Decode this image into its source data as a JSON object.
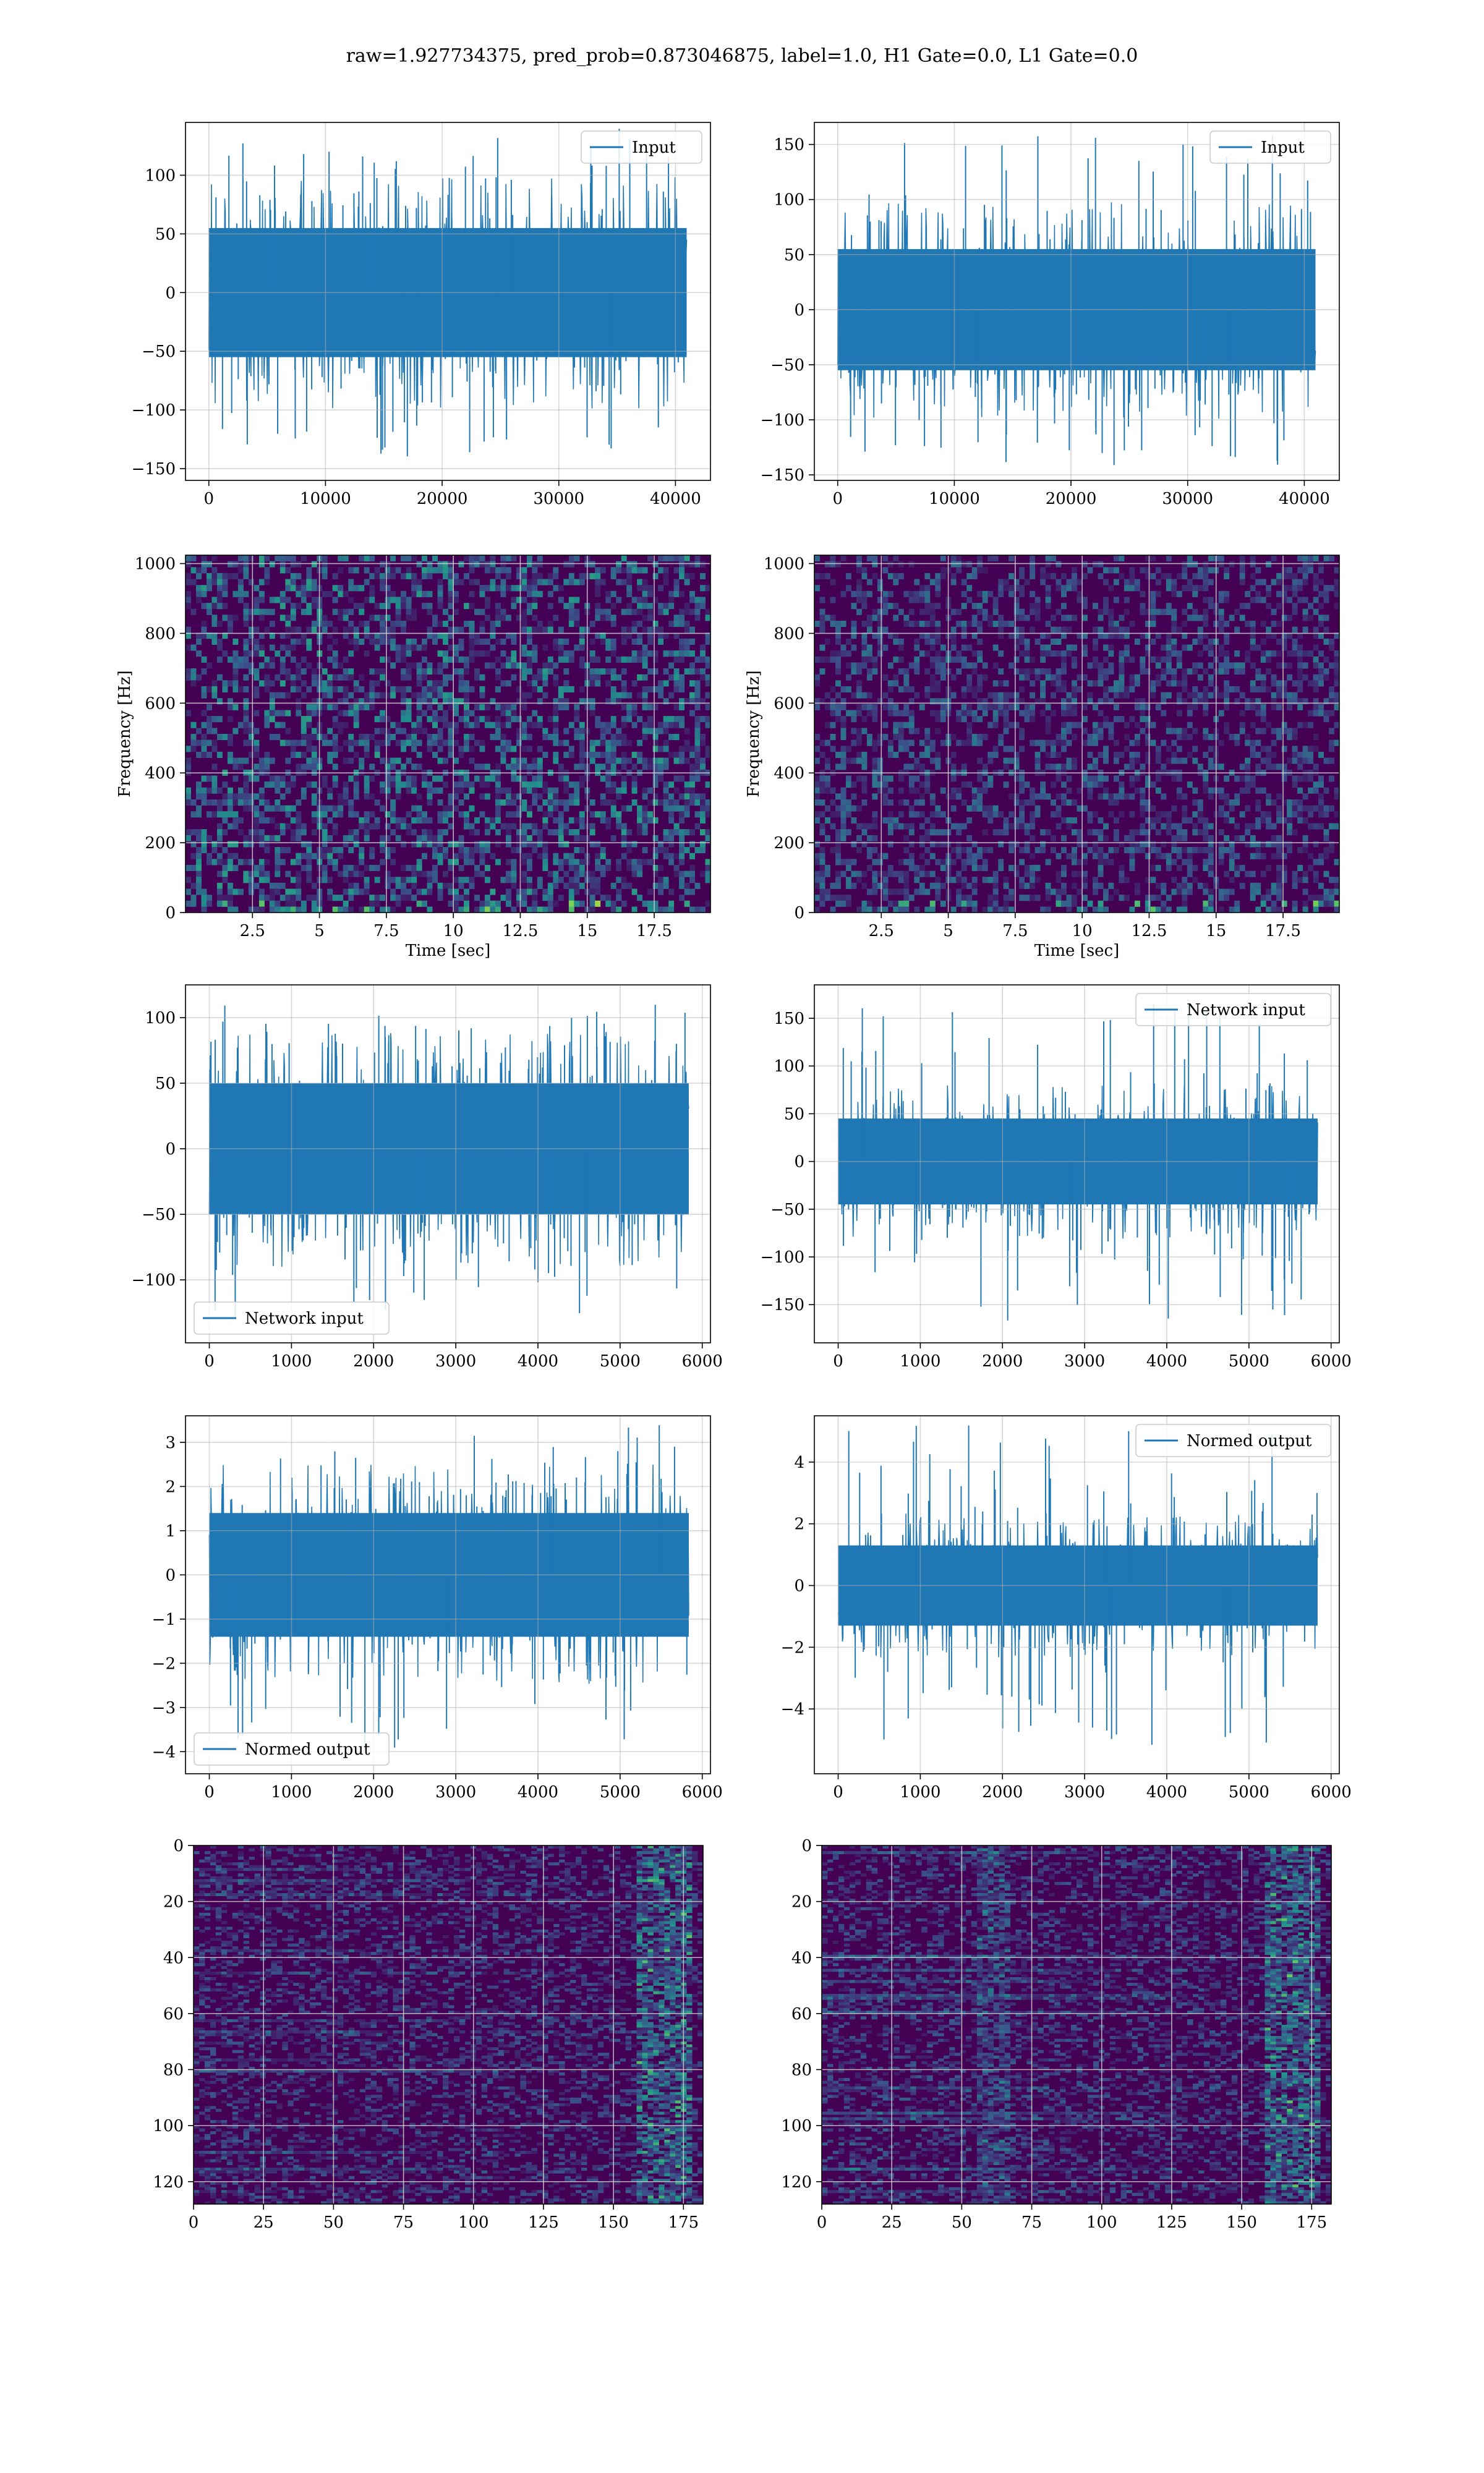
{
  "figure_title": "raw=1.927734375, pred_prob=0.873046875, label=1.0, H1 Gate=0.0, L1 Gate=0.0",
  "colors": {
    "line": "#1f77b4",
    "grid": "#b0b0b0",
    "viridis_dark": "#440154",
    "viridis_mid": "#21918c",
    "viridis_bright": "#fde725"
  },
  "chart_data": [
    {
      "id": "input-h1",
      "type": "line",
      "legend": "Input",
      "legend_loc": "upper right",
      "grid": true,
      "xlim": [
        -2000,
        43000
      ],
      "ylim": [
        -160,
        145
      ],
      "xticks": [
        0,
        10000,
        20000,
        30000,
        40000
      ],
      "yticks": [
        -150,
        -100,
        -50,
        0,
        50,
        100
      ],
      "x_range": [
        0,
        40959
      ],
      "band_y": [
        -55,
        55
      ],
      "spike_y": [
        -145,
        140
      ],
      "xlabel": "",
      "ylabel": ""
    },
    {
      "id": "input-l1",
      "type": "line",
      "legend": "Input",
      "legend_loc": "upper right",
      "grid": true,
      "xlim": [
        -2000,
        43000
      ],
      "ylim": [
        -155,
        170
      ],
      "xticks": [
        0,
        10000,
        20000,
        30000,
        40000
      ],
      "yticks": [
        -150,
        -100,
        -50,
        0,
        50,
        100,
        150
      ],
      "x_range": [
        0,
        40959
      ],
      "band_y": [
        -55,
        55
      ],
      "spike_y": [
        -145,
        160
      ],
      "xlabel": "",
      "ylabel": ""
    },
    {
      "id": "spec-h1",
      "type": "heatmap",
      "grid": true,
      "colormap": "viridis",
      "xlim": [
        0,
        19.6
      ],
      "ylim": [
        0,
        1024
      ],
      "xticks": [
        2.5,
        5.0,
        7.5,
        10.0,
        12.5,
        15.0,
        17.5
      ],
      "yticks": [
        0,
        200,
        400,
        600,
        800,
        1000
      ],
      "xlabel": "Time [sec]",
      "ylabel": "Frequency [Hz]"
    },
    {
      "id": "spec-l1",
      "type": "heatmap",
      "grid": true,
      "colormap": "viridis",
      "xlim": [
        0,
        19.6
      ],
      "ylim": [
        0,
        1024
      ],
      "xticks": [
        2.5,
        5.0,
        7.5,
        10.0,
        12.5,
        15.0,
        17.5
      ],
      "yticks": [
        0,
        200,
        400,
        600,
        800,
        1000
      ],
      "xlabel": "Time [sec]",
      "ylabel": "Frequency [Hz]"
    },
    {
      "id": "net-h1",
      "type": "line",
      "legend": "Network input",
      "legend_loc": "lower left",
      "grid": true,
      "xlim": [
        -290,
        6100
      ],
      "ylim": [
        -148,
        125
      ],
      "xticks": [
        0,
        1000,
        2000,
        3000,
        4000,
        5000,
        6000
      ],
      "yticks": [
        -100,
        -50,
        0,
        50,
        100
      ],
      "x_range": [
        0,
        5836
      ],
      "band_y": [
        -50,
        50
      ],
      "spike_y": [
        -132,
        110
      ],
      "xlabel": "",
      "ylabel": ""
    },
    {
      "id": "net-l1",
      "type": "line",
      "legend": "Network input",
      "legend_loc": "upper right",
      "grid": true,
      "xlim": [
        -290,
        6100
      ],
      "ylim": [
        -190,
        185
      ],
      "xticks": [
        0,
        1000,
        2000,
        3000,
        4000,
        5000,
        6000
      ],
      "yticks": [
        -150,
        -100,
        -50,
        0,
        50,
        100,
        150
      ],
      "x_range": [
        0,
        5836
      ],
      "band_y": [
        -45,
        45
      ],
      "spike_y": [
        -170,
        170
      ],
      "xlabel": "",
      "ylabel": ""
    },
    {
      "id": "norm-h1",
      "type": "line",
      "legend": "Normed output",
      "legend_loc": "lower left",
      "grid": true,
      "xlim": [
        -290,
        6100
      ],
      "ylim": [
        -4.5,
        3.6
      ],
      "xticks": [
        0,
        1000,
        2000,
        3000,
        4000,
        5000,
        6000
      ],
      "yticks": [
        -4,
        -3,
        -2,
        -1,
        0,
        1,
        2,
        3
      ],
      "x_range": [
        0,
        5836
      ],
      "band_y": [
        -1.4,
        1.4
      ],
      "spike_y": [
        -4.0,
        3.4
      ],
      "xlabel": "",
      "ylabel": ""
    },
    {
      "id": "norm-l1",
      "type": "line",
      "legend": "Normed output",
      "legend_loc": "upper right",
      "grid": true,
      "xlim": [
        -290,
        6100
      ],
      "ylim": [
        -6.1,
        5.5
      ],
      "xticks": [
        0,
        1000,
        2000,
        3000,
        4000,
        5000,
        6000
      ],
      "yticks": [
        -4,
        -2,
        0,
        2,
        4
      ],
      "x_range": [
        0,
        5836
      ],
      "band_y": [
        -1.3,
        1.3
      ],
      "spike_y": [
        -5.2,
        5.2
      ],
      "xlabel": "",
      "ylabel": ""
    },
    {
      "id": "feat-h1",
      "type": "heatmap",
      "grid": true,
      "colormap": "viridis",
      "yaxis": "inverted",
      "xlim": [
        0,
        182
      ],
      "ylim": [
        128,
        0
      ],
      "xticks": [
        0,
        25,
        50,
        75,
        100,
        125,
        150,
        175
      ],
      "yticks": [
        0,
        20,
        40,
        60,
        80,
        100,
        120
      ],
      "xlabel": "",
      "ylabel": ""
    },
    {
      "id": "feat-l1",
      "type": "heatmap",
      "grid": true,
      "colormap": "viridis",
      "yaxis": "inverted",
      "xlim": [
        0,
        182
      ],
      "ylim": [
        128,
        0
      ],
      "xticks": [
        0,
        25,
        50,
        75,
        100,
        125,
        150,
        175
      ],
      "yticks": [
        0,
        20,
        40,
        60,
        80,
        100,
        120
      ],
      "xlabel": "",
      "ylabel": ""
    }
  ]
}
